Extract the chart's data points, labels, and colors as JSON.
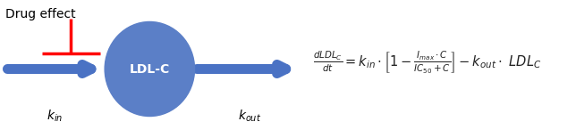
{
  "background_color": "#ffffff",
  "circle_color": "#5b7fc7",
  "circle_label": "LDL-C",
  "circle_label_color": "#ffffff",
  "circle_label_fontsize": 10,
  "arrow_color": "#4a72c4",
  "red_color": "#ff0000",
  "drug_effect_label": "Drug effect",
  "kin_label": "$k_{in}$",
  "kout_label": "$k_{out}$",
  "label_fontsize": 10,
  "label_color": "#000000",
  "equation_color": "#222222",
  "equation_fontsize": 10.5,
  "fig_width": 6.44,
  "fig_height": 1.55,
  "dpi": 100
}
